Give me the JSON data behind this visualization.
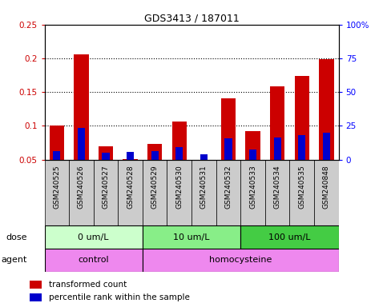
{
  "title": "GDS3413 / 187011",
  "samples": [
    "GSM240525",
    "GSM240526",
    "GSM240527",
    "GSM240528",
    "GSM240529",
    "GSM240530",
    "GSM240531",
    "GSM240532",
    "GSM240533",
    "GSM240534",
    "GSM240535",
    "GSM240848"
  ],
  "transformed_count": [
    0.1,
    0.206,
    0.07,
    0.051,
    0.073,
    0.107,
    0.05,
    0.141,
    0.092,
    0.159,
    0.174,
    0.199
  ],
  "percentile_rank": [
    0.063,
    0.097,
    0.06,
    0.062,
    0.063,
    0.068,
    0.058,
    0.082,
    0.065,
    0.083,
    0.086,
    0.09
  ],
  "bar_bottom": 0.05,
  "ylim_left": [
    0.05,
    0.25
  ],
  "ylim_right": [
    0.0,
    100.0
  ],
  "yticks_left": [
    0.05,
    0.1,
    0.15,
    0.2,
    0.25
  ],
  "yticks_right": [
    0,
    25,
    50,
    75,
    100
  ],
  "ytick_labels_left": [
    "0.05",
    "0.1",
    "0.15",
    "0.2",
    "0.25"
  ],
  "ytick_labels_right": [
    "0",
    "25",
    "50",
    "75",
    "100%"
  ],
  "dose_groups": [
    {
      "label": "0 um/L",
      "start": 0,
      "end": 4,
      "color": "#ccffcc"
    },
    {
      "label": "10 um/L",
      "start": 4,
      "end": 8,
      "color": "#88ee88"
    },
    {
      "label": "100 um/L",
      "start": 8,
      "end": 12,
      "color": "#44cc44"
    }
  ],
  "agent_regions": [
    {
      "label": "control",
      "start": 0,
      "end": 4
    },
    {
      "label": "homocysteine",
      "start": 4,
      "end": 12
    }
  ],
  "agent_color": "#ee88ee",
  "dose_label": "dose",
  "agent_label": "agent",
  "red_color": "#cc0000",
  "blue_color": "#0000cc",
  "bar_width": 0.6,
  "blue_bar_width": 0.3,
  "legend_red": "transformed count",
  "legend_blue": "percentile rank within the sample",
  "bg_color": "#ffffff",
  "sample_bg": "#cccccc",
  "dotted_lines": [
    0.1,
    0.15,
    0.2
  ]
}
